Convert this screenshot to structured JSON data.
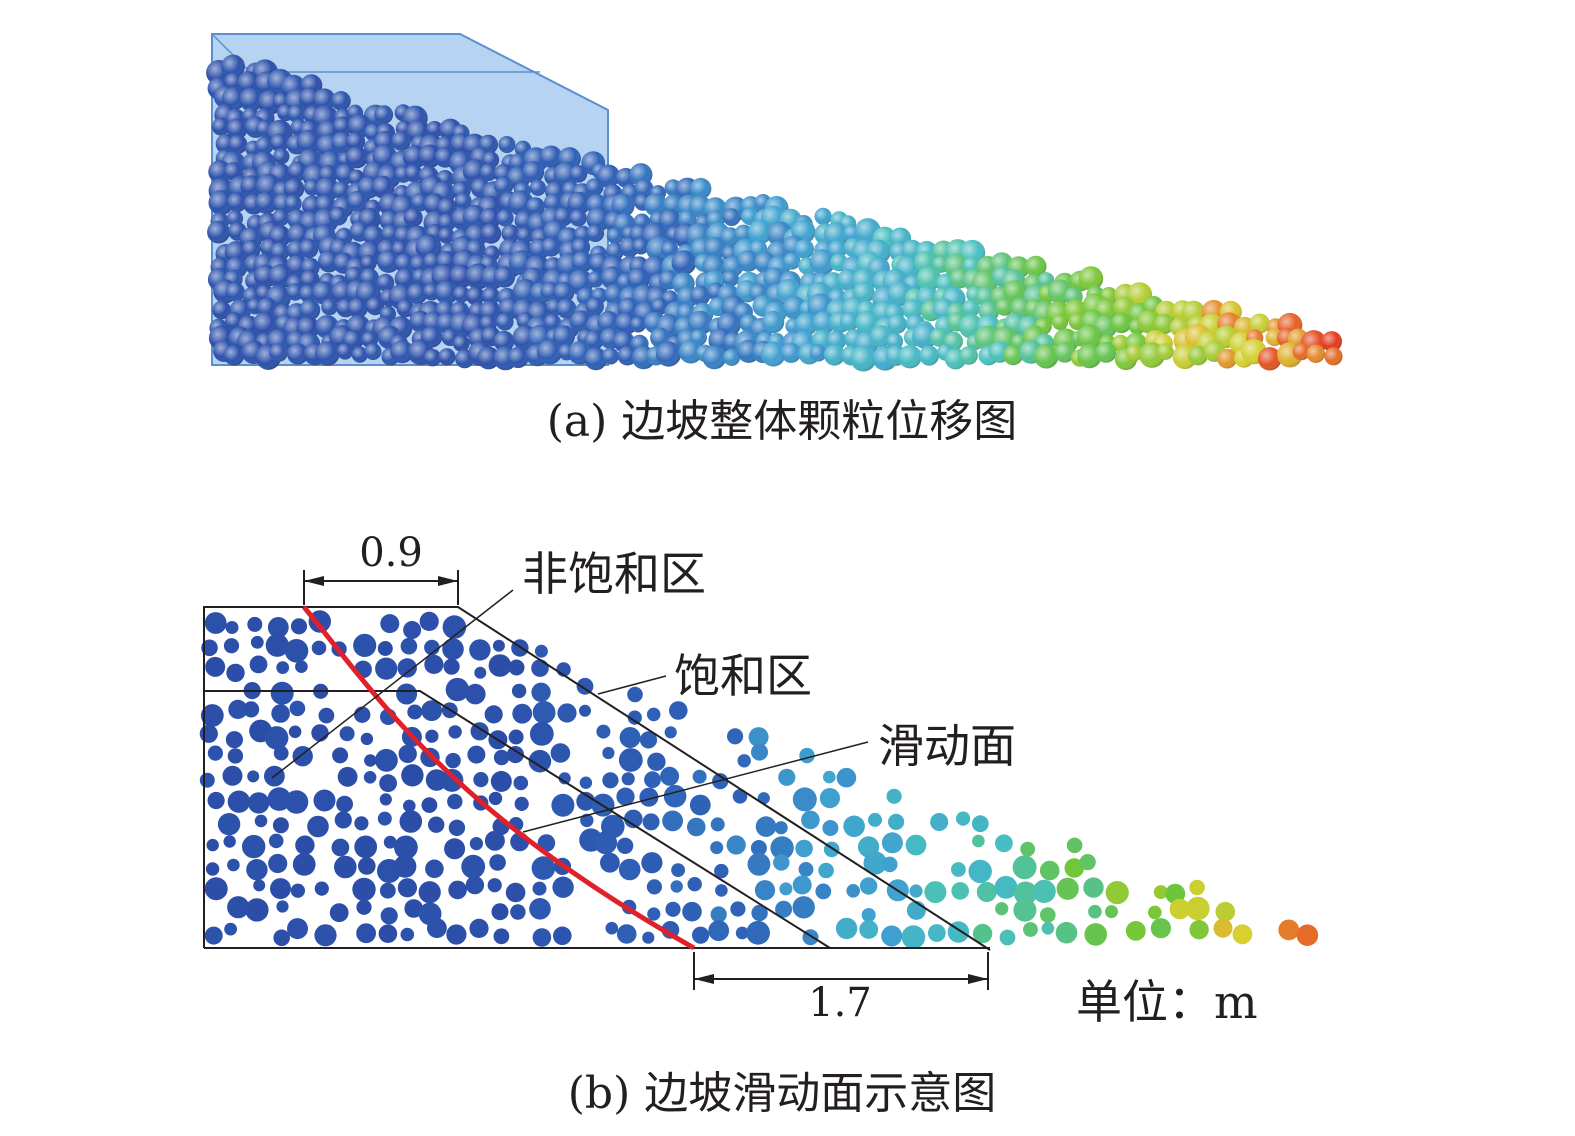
{
  "panel_a": {
    "caption": "(a) 边坡整体颗粒位移图"
  },
  "panel_b": {
    "caption": "(b) 边坡滑动面示意图",
    "dim_top": "0.9",
    "dim_bottom": "1.7",
    "label_unsaturated": "非饱和区",
    "label_saturated": "饱和区",
    "label_slip_surface": "滑动面",
    "unit": "单位：m"
  },
  "colors": {
    "low_displacement": "#2b4aa6",
    "mid_displacement": "#42b3c8",
    "high_displacement": "#6cc53a",
    "max_displacement": "#e23a1f",
    "slip_line": "#e0202a",
    "box_fill": "#7aaee8"
  }
}
